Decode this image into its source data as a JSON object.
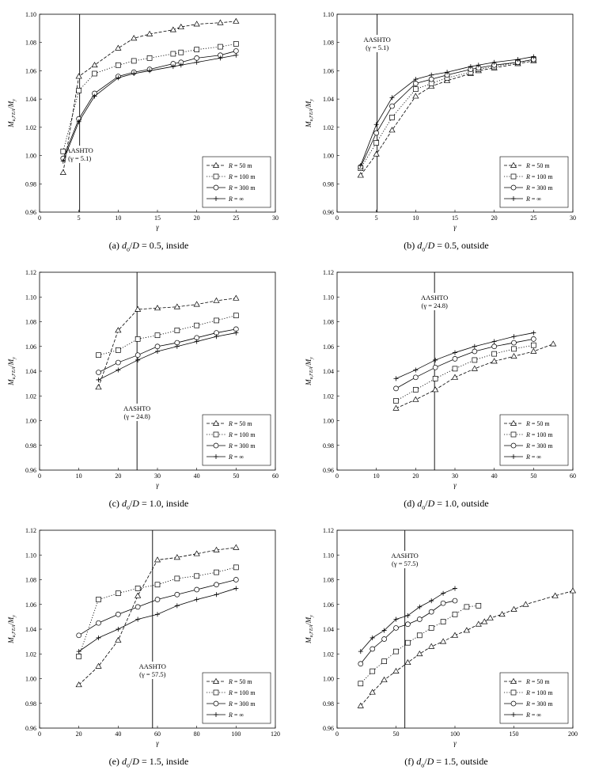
{
  "chart_data": [
    {
      "type": "line",
      "caption": "(a) do/D = 0.5, inside",
      "caption_parts": {
        "prefix": "(a) ",
        "var": "d",
        "sub": "o",
        "mid": "/",
        "var2": "D",
        "rest": " = 0.5, inside"
      },
      "xlabel": "γ",
      "ylabel": "Mu,FEA/My",
      "xlim": [
        0,
        30
      ],
      "xticks": [
        0,
        5,
        10,
        15,
        20,
        25,
        30
      ],
      "ylim": [
        0.96,
        1.1
      ],
      "yticks": [
        0.96,
        0.98,
        1.0,
        1.02,
        1.04,
        1.06,
        1.08,
        1.1
      ],
      "aashto": {
        "x": 5.1,
        "line1": "AASHTO",
        "line2": "(γ = 5.1)",
        "label_pos": "lower"
      },
      "series": [
        {
          "name": "R = 50 m",
          "marker": "triangle",
          "dash": "dashed",
          "x": [
            3,
            5,
            7,
            10,
            12,
            14,
            17,
            18,
            20,
            23,
            25
          ],
          "y": [
            0.988,
            1.056,
            1.064,
            1.076,
            1.083,
            1.086,
            1.089,
            1.091,
            1.093,
            1.094,
            1.095
          ]
        },
        {
          "name": "R = 100 m",
          "marker": "square",
          "dash": "dotted",
          "x": [
            3,
            5,
            7,
            10,
            12,
            14,
            17,
            18,
            20,
            23,
            25
          ],
          "y": [
            1.003,
            1.046,
            1.058,
            1.064,
            1.067,
            1.069,
            1.072,
            1.073,
            1.075,
            1.077,
            1.079
          ]
        },
        {
          "name": "R = 300 m",
          "marker": "circle",
          "dash": "solid",
          "x": [
            3,
            5,
            7,
            10,
            12,
            14,
            17,
            18,
            20,
            23,
            25
          ],
          "y": [
            0.998,
            1.026,
            1.044,
            1.056,
            1.059,
            1.061,
            1.065,
            1.066,
            1.069,
            1.071,
            1.074
          ]
        },
        {
          "name": "R = ∞",
          "marker": "plus",
          "dash": "solid",
          "x": [
            3,
            5,
            7,
            10,
            12,
            14,
            17,
            18,
            20,
            23,
            25
          ],
          "y": [
            0.996,
            1.024,
            1.042,
            1.055,
            1.058,
            1.06,
            1.063,
            1.064,
            1.066,
            1.069,
            1.071
          ]
        }
      ],
      "legend": "lower-right"
    },
    {
      "type": "line",
      "caption": "(b) do/D = 0.5, outside",
      "caption_parts": {
        "prefix": "(b) ",
        "var": "d",
        "sub": "o",
        "mid": "/",
        "var2": "D",
        "rest": " = 0.5, outside"
      },
      "xlabel": "γ",
      "ylabel": "Mu,FEA/My",
      "xlim": [
        0,
        30
      ],
      "xticks": [
        0,
        5,
        10,
        15,
        20,
        25,
        30
      ],
      "ylim": [
        0.96,
        1.1
      ],
      "yticks": [
        0.96,
        0.98,
        1.0,
        1.02,
        1.04,
        1.06,
        1.08,
        1.1
      ],
      "aashto": {
        "x": 5.1,
        "line1": "AASHTO",
        "line2": "(γ = 5.1)",
        "label_pos": "upper"
      },
      "series": [
        {
          "name": "R = 50 m",
          "marker": "triangle",
          "dash": "dashed",
          "x": [
            3,
            5,
            7,
            10,
            12,
            14,
            17,
            18,
            20,
            23,
            25
          ],
          "y": [
            0.986,
            1.001,
            1.018,
            1.042,
            1.049,
            1.053,
            1.058,
            1.06,
            1.062,
            1.065,
            1.067
          ]
        },
        {
          "name": "R = 100 m",
          "marker": "square",
          "dash": "dotted",
          "x": [
            3,
            5,
            7,
            10,
            12,
            14,
            17,
            18,
            20,
            23,
            25
          ],
          "y": [
            0.991,
            1.009,
            1.027,
            1.047,
            1.051,
            1.055,
            1.059,
            1.061,
            1.063,
            1.066,
            1.068
          ]
        },
        {
          "name": "R = 300 m",
          "marker": "circle",
          "dash": "solid",
          "x": [
            3,
            5,
            7,
            10,
            12,
            14,
            17,
            18,
            20,
            23,
            25
          ],
          "y": [
            0.992,
            1.016,
            1.035,
            1.051,
            1.054,
            1.057,
            1.061,
            1.062,
            1.064,
            1.066,
            1.068
          ]
        },
        {
          "name": "R = ∞",
          "marker": "plus",
          "dash": "solid",
          "x": [
            3,
            5,
            7,
            10,
            12,
            14,
            17,
            18,
            20,
            23,
            25
          ],
          "y": [
            0.993,
            1.022,
            1.041,
            1.054,
            1.057,
            1.059,
            1.063,
            1.064,
            1.066,
            1.068,
            1.07
          ]
        }
      ],
      "legend": "lower-right"
    },
    {
      "type": "line",
      "caption": "(c) do/D = 1.0, inside",
      "caption_parts": {
        "prefix": "(c) ",
        "var": "d",
        "sub": "o",
        "mid": "/",
        "var2": "D",
        "rest": " = 1.0, inside"
      },
      "xlabel": "γ",
      "ylabel": "Mu,FEA/My",
      "xlim": [
        0,
        60
      ],
      "xticks": [
        0,
        10,
        20,
        30,
        40,
        50,
        60
      ],
      "ylim": [
        0.96,
        1.12
      ],
      "yticks": [
        0.96,
        0.98,
        1.0,
        1.02,
        1.04,
        1.06,
        1.08,
        1.1,
        1.12
      ],
      "aashto": {
        "x": 24.8,
        "line1": "AASHTO",
        "line2": "(γ = 24.8)",
        "label_pos": "lower"
      },
      "series": [
        {
          "name": "R = 50 m",
          "marker": "triangle",
          "dash": "dashed",
          "x": [
            15,
            20,
            25,
            30,
            35,
            40,
            45,
            50
          ],
          "y": [
            1.027,
            1.073,
            1.09,
            1.091,
            1.092,
            1.094,
            1.097,
            1.099
          ]
        },
        {
          "name": "R = 100 m",
          "marker": "square",
          "dash": "dotted",
          "x": [
            15,
            20,
            25,
            30,
            35,
            40,
            45,
            50
          ],
          "y": [
            1.053,
            1.057,
            1.066,
            1.069,
            1.073,
            1.077,
            1.081,
            1.085
          ]
        },
        {
          "name": "R = 300 m",
          "marker": "circle",
          "dash": "solid",
          "x": [
            15,
            20,
            25,
            30,
            35,
            40,
            45,
            50
          ],
          "y": [
            1.039,
            1.047,
            1.053,
            1.06,
            1.063,
            1.067,
            1.071,
            1.074
          ]
        },
        {
          "name": "R = ∞",
          "marker": "plus",
          "dash": "solid",
          "x": [
            15,
            20,
            25,
            30,
            35,
            40,
            45,
            50
          ],
          "y": [
            1.033,
            1.041,
            1.049,
            1.056,
            1.06,
            1.064,
            1.068,
            1.071
          ]
        }
      ],
      "legend": "lower-right"
    },
    {
      "type": "line",
      "caption": "(d) do/D = 1.0, outside",
      "caption_parts": {
        "prefix": "(d) ",
        "var": "d",
        "sub": "o",
        "mid": "/",
        "var2": "D",
        "rest": " = 1.0, outside"
      },
      "xlabel": "γ",
      "ylabel": "Mu,FEA/My",
      "xlim": [
        0,
        60
      ],
      "xticks": [
        0,
        10,
        20,
        30,
        40,
        50,
        60
      ],
      "ylim": [
        0.96,
        1.12
      ],
      "yticks": [
        0.96,
        0.98,
        1.0,
        1.02,
        1.04,
        1.06,
        1.08,
        1.1,
        1.12
      ],
      "aashto": {
        "x": 24.8,
        "line1": "AASHTO",
        "line2": "(γ = 24.8)",
        "label_pos": "upper"
      },
      "series": [
        {
          "name": "R = 50 m",
          "marker": "triangle",
          "dash": "dashed",
          "x": [
            15,
            20,
            25,
            30,
            35,
            40,
            45,
            50,
            55
          ],
          "y": [
            1.01,
            1.017,
            1.025,
            1.035,
            1.042,
            1.048,
            1.052,
            1.056,
            1.062
          ]
        },
        {
          "name": "R = 100 m",
          "marker": "square",
          "dash": "dotted",
          "x": [
            15,
            20,
            25,
            30,
            35,
            40,
            45,
            50
          ],
          "y": [
            1.016,
            1.025,
            1.034,
            1.042,
            1.049,
            1.054,
            1.058,
            1.061
          ]
        },
        {
          "name": "R = 300 m",
          "marker": "circle",
          "dash": "solid",
          "x": [
            15,
            20,
            25,
            30,
            35,
            40,
            45,
            50
          ],
          "y": [
            1.026,
            1.035,
            1.043,
            1.05,
            1.056,
            1.06,
            1.063,
            1.066
          ]
        },
        {
          "name": "R = ∞",
          "marker": "plus",
          "dash": "solid",
          "x": [
            15,
            20,
            25,
            30,
            35,
            40,
            45,
            50
          ],
          "y": [
            1.034,
            1.041,
            1.049,
            1.055,
            1.06,
            1.064,
            1.068,
            1.071
          ]
        }
      ],
      "legend": "lower-right"
    },
    {
      "type": "line",
      "caption": "(e) do/D = 1.5, inside",
      "caption_parts": {
        "prefix": "(e) ",
        "var": "d",
        "sub": "o",
        "mid": "/",
        "var2": "D",
        "rest": " = 1.5, inside"
      },
      "xlabel": "γ",
      "ylabel": "Mu,FEA/My",
      "xlim": [
        0,
        120
      ],
      "xticks": [
        0,
        20,
        40,
        60,
        80,
        100,
        120
      ],
      "ylim": [
        0.96,
        1.12
      ],
      "yticks": [
        0.96,
        0.98,
        1.0,
        1.02,
        1.04,
        1.06,
        1.08,
        1.1,
        1.12
      ],
      "aashto": {
        "x": 57.5,
        "line1": "AASHTO",
        "line2": "(γ = 57.5)",
        "label_pos": "lower"
      },
      "series": [
        {
          "name": "R = 50 m",
          "marker": "triangle",
          "dash": "dashed",
          "x": [
            20,
            30,
            40,
            50,
            60,
            70,
            80,
            90,
            100
          ],
          "y": [
            0.995,
            1.01,
            1.031,
            1.067,
            1.096,
            1.098,
            1.101,
            1.104,
            1.106
          ]
        },
        {
          "name": "R = 100 m",
          "marker": "square",
          "dash": "dotted",
          "x": [
            20,
            30,
            40,
            50,
            60,
            70,
            80,
            90,
            100
          ],
          "y": [
            1.018,
            1.064,
            1.069,
            1.073,
            1.076,
            1.081,
            1.083,
            1.086,
            1.09
          ]
        },
        {
          "name": "R = 300 m",
          "marker": "circle",
          "dash": "solid",
          "x": [
            20,
            30,
            40,
            50,
            60,
            70,
            80,
            90,
            100
          ],
          "y": [
            1.035,
            1.045,
            1.052,
            1.058,
            1.064,
            1.068,
            1.072,
            1.076,
            1.08
          ]
        },
        {
          "name": "R = ∞",
          "marker": "plus",
          "dash": "solid",
          "x": [
            20,
            30,
            40,
            50,
            60,
            70,
            80,
            90,
            100
          ],
          "y": [
            1.022,
            1.033,
            1.04,
            1.048,
            1.052,
            1.059,
            1.064,
            1.068,
            1.073
          ]
        }
      ],
      "legend": "lower-right"
    },
    {
      "type": "line",
      "caption": "(f) do/D = 1.5, outside",
      "caption_parts": {
        "prefix": "(f) ",
        "var": "d",
        "sub": "o",
        "mid": "/",
        "var2": "D",
        "rest": " = 1.5, outside"
      },
      "xlabel": "γ",
      "ylabel": "Mu,FEA/My",
      "xlim": [
        0,
        200
      ],
      "xticks": [
        0,
        50,
        100,
        150,
        200
      ],
      "ylim": [
        0.96,
        1.12
      ],
      "yticks": [
        0.96,
        0.98,
        1.0,
        1.02,
        1.04,
        1.06,
        1.08,
        1.1,
        1.12
      ],
      "aashto": {
        "x": 57.5,
        "line1": "AASHTO",
        "line2": "(γ = 57.5)",
        "label_pos": "upper"
      },
      "series": [
        {
          "name": "R = 50 m",
          "marker": "triangle",
          "dash": "dashed",
          "x": [
            20,
            30,
            40,
            50,
            60,
            70,
            80,
            90,
            100,
            110,
            120,
            125,
            130,
            140,
            150,
            160,
            185,
            200
          ],
          "y": [
            0.978,
            0.989,
            0.999,
            1.006,
            1.013,
            1.02,
            1.026,
            1.03,
            1.035,
            1.039,
            1.044,
            1.046,
            1.049,
            1.052,
            1.056,
            1.06,
            1.067,
            1.071
          ]
        },
        {
          "name": "R = 100 m",
          "marker": "square",
          "dash": "dotted",
          "x": [
            20,
            30,
            40,
            50,
            60,
            70,
            80,
            90,
            100,
            110,
            120
          ],
          "y": [
            0.996,
            1.006,
            1.014,
            1.022,
            1.029,
            1.035,
            1.041,
            1.046,
            1.052,
            1.058,
            1.059
          ]
        },
        {
          "name": "R = 300 m",
          "marker": "circle",
          "dash": "solid",
          "x": [
            20,
            30,
            40,
            50,
            60,
            70,
            80,
            90,
            100
          ],
          "y": [
            1.012,
            1.024,
            1.032,
            1.041,
            1.044,
            1.048,
            1.054,
            1.061,
            1.063
          ]
        },
        {
          "name": "R = ∞",
          "marker": "plus",
          "dash": "solid",
          "x": [
            20,
            30,
            40,
            50,
            60,
            70,
            80,
            90,
            100
          ],
          "y": [
            1.022,
            1.033,
            1.039,
            1.048,
            1.051,
            1.058,
            1.063,
            1.069,
            1.073
          ]
        }
      ],
      "legend": "lower-right"
    }
  ]
}
